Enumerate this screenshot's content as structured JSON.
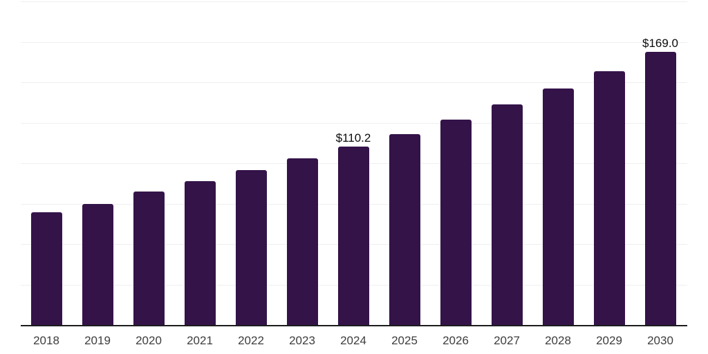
{
  "chart_data": {
    "type": "bar",
    "title": "",
    "categories": [
      "2018",
      "2019",
      "2020",
      "2021",
      "2022",
      "2023",
      "2024",
      "2025",
      "2026",
      "2027",
      "2028",
      "2029",
      "2030"
    ],
    "values": [
      69.5,
      74.9,
      82.4,
      89.1,
      95.9,
      102.9,
      110.2,
      118.0,
      127.0,
      136.5,
      146.3,
      157.0,
      169.0
    ],
    "data_labels": {
      "2024": "$110.2",
      "2030": "$169.0"
    },
    "xlabel": "",
    "ylabel": "",
    "ylim": [
      0,
      200
    ],
    "grid_interval": 25,
    "grid_on": true,
    "legend": "none",
    "colors": {
      "bar": "#341349",
      "gridline": "#efefef",
      "axis_line": "#1c1c1c",
      "tick_label": "#3d3d3d",
      "data_label": "#0b0b0b",
      "background": "#ffffff"
    }
  }
}
